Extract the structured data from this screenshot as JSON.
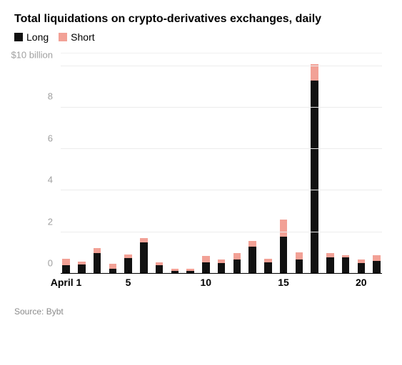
{
  "chart": {
    "type": "stacked-bar",
    "title": "Total liquidations on crypto-derivatives exchanges, daily",
    "legend": [
      {
        "label": "Long",
        "color": "#111111"
      },
      {
        "label": "Short",
        "color": "#f2a196"
      }
    ],
    "y_axis": {
      "min": 0,
      "max": 10.6,
      "ticks": [
        {
          "v": 0,
          "label": "0"
        },
        {
          "v": 2,
          "label": "2"
        },
        {
          "v": 4,
          "label": "4"
        },
        {
          "v": 6,
          "label": "6"
        },
        {
          "v": 8,
          "label": "8"
        },
        {
          "v": 10,
          "label": "$10 billion"
        }
      ],
      "label_color": "#a0a0a0",
      "label_fontsize": 13
    },
    "gridline_color": "#ececec",
    "baseline_color": "#000000",
    "background": "#ffffff",
    "series_colors": {
      "long": "#111111",
      "short": "#f2a196"
    },
    "categories": [
      1,
      2,
      3,
      4,
      5,
      6,
      7,
      8,
      9,
      10,
      11,
      12,
      13,
      14,
      15,
      16,
      17,
      18,
      19,
      20,
      21
    ],
    "long": [
      0.42,
      0.45,
      1.0,
      0.25,
      0.75,
      1.5,
      0.4,
      0.13,
      0.13,
      0.55,
      0.5,
      0.7,
      1.3,
      0.55,
      1.8,
      0.68,
      9.3,
      0.8,
      0.8,
      0.5,
      0.62
    ],
    "short": [
      0.3,
      0.14,
      0.22,
      0.22,
      0.18,
      0.22,
      0.16,
      0.1,
      0.1,
      0.3,
      0.18,
      0.3,
      0.27,
      0.18,
      0.8,
      0.35,
      0.8,
      0.2,
      0.1,
      0.2,
      0.28
    ],
    "x_ticks": [
      {
        "index": 0,
        "label": "April 1"
      },
      {
        "index": 4,
        "label": "5"
      },
      {
        "index": 9,
        "label": "10"
      },
      {
        "index": 14,
        "label": "15"
      },
      {
        "index": 19,
        "label": "20"
      }
    ],
    "x_label_fontsize": 14,
    "bar_gap_pct": 2.5
  },
  "source": "Source: Bybt"
}
